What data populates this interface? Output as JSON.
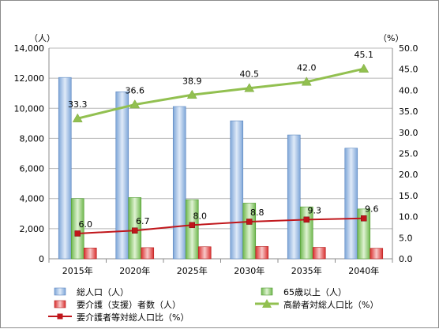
{
  "chart_data": {
    "type": "bar",
    "categories": [
      "2015年",
      "2020年",
      "2025年",
      "2030年",
      "2035年",
      "2040年"
    ],
    "y_unit_left": "（人）",
    "y_unit_right": "（%）",
    "y_left_ticks": [
      "0",
      "2,000",
      "4,000",
      "6,000",
      "8,000",
      "10,000",
      "12,000",
      "14,000"
    ],
    "y_right_ticks": [
      "0.0",
      "5.0",
      "10.0",
      "15.0",
      "20.0",
      "25.0",
      "30.0",
      "35.0",
      "40.0",
      "45.0",
      "50.0"
    ],
    "ylim_left": [
      0,
      14000
    ],
    "ylim_right": [
      0,
      50
    ],
    "grid": true,
    "legend_position": "bottom",
    "series": [
      {
        "name": "総人口（人）",
        "kind": "bar",
        "axis": "left",
        "color": "#a6c4ea",
        "values": [
          12050,
          11100,
          10120,
          9170,
          8230,
          7350
        ]
      },
      {
        "name": "65歳以上（人）",
        "kind": "bar",
        "axis": "left",
        "color": "#9ad07a",
        "values": [
          4000,
          4070,
          3930,
          3700,
          3450,
          3310
        ]
      },
      {
        "name": "要介護（支援）者数（人）",
        "kind": "bar",
        "axis": "left",
        "color": "#e85a5a",
        "values": [
          720,
          740,
          800,
          820,
          760,
          700
        ]
      },
      {
        "name": "高齢者対総人口比（%）",
        "kind": "line",
        "axis": "right",
        "color": "#92c050",
        "marker": "triangle",
        "values": [
          33.3,
          36.6,
          38.9,
          40.5,
          42.0,
          45.1
        ],
        "labels": [
          "33.3",
          "36.6",
          "38.9",
          "40.5",
          "42.0",
          "45.1"
        ]
      },
      {
        "name": "要介護者等対総人口比（%）",
        "kind": "line",
        "axis": "right",
        "color": "#c0161b",
        "marker": "square",
        "values": [
          6.0,
          6.7,
          8.0,
          8.8,
          9.3,
          9.6
        ],
        "labels": [
          "6.0",
          "6.7",
          "8.0",
          "8.8",
          "9.3",
          "9.6"
        ]
      }
    ]
  }
}
